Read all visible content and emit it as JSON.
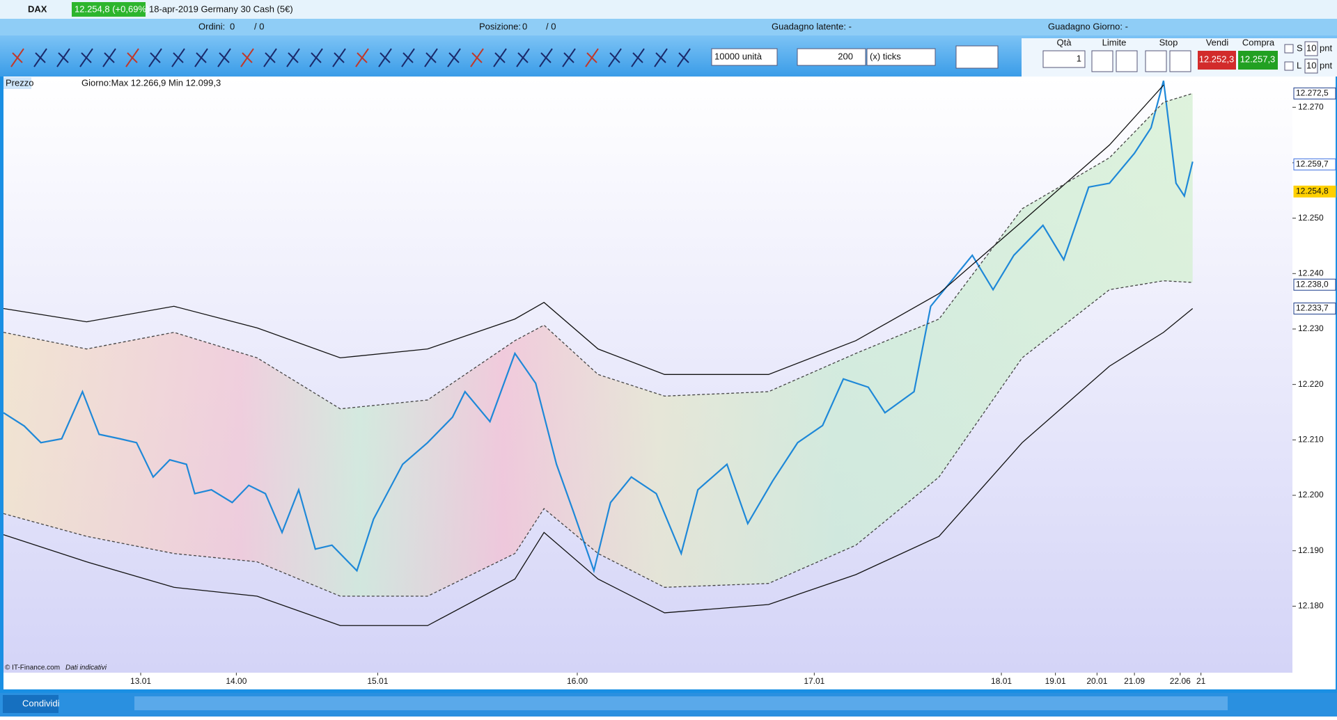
{
  "title_bar": {
    "instrument": "DAX",
    "price": "12.254,8 (+0,69%)",
    "description": "18-apr-2019 Germany 30 Cash (5€)"
  },
  "status_bar": {
    "orders_label": "Ordini:",
    "orders_value": "0",
    "orders_total": "/ 0",
    "position_label": "Posizione:",
    "position_value": "0",
    "position_total": "/ 0",
    "latent_gain": "Guadagno latente: -",
    "daily_gain": "Guadagno Giorno: -"
  },
  "toolbar": {
    "units": "10000 unità",
    "ticks_value": "200",
    "ticks_unit": "(x) ticks",
    "qty_label": "Qtà",
    "qty_value": "1",
    "limit_label": "Limite",
    "stop_label": "Stop",
    "sell_label": "Vendi",
    "sell_price": "12.252,3",
    "buy_label": "Compra",
    "buy_price": "12.257,3",
    "s_label": "S",
    "s_value": "10",
    "l_label": "L",
    "l_value": "10",
    "pnt": "pnt"
  },
  "panel": {
    "label": "Prezzo",
    "info": "Giorno:Max 12.266,9 Min 12.099,3",
    "copyright": "© IT-Finance.com",
    "disclaimer": "Dati indicativi"
  },
  "bottom_bar": {
    "share": "Condividi"
  },
  "chart_data": {
    "type": "line",
    "xlim": [
      0,
      310
    ],
    "ylim": [
      12.168,
      12.2753
    ],
    "xticks": [
      {
        "value": 33,
        "label": "13.01"
      },
      {
        "value": 56,
        "label": "14.00"
      },
      {
        "value": 90,
        "label": "15.01"
      },
      {
        "value": 138,
        "label": "16.00"
      },
      {
        "value": 195,
        "label": "17.01"
      },
      {
        "value": 240,
        "label": "18.01"
      },
      {
        "value": 253,
        "label": "19.01"
      },
      {
        "value": 263,
        "label": "20.01"
      },
      {
        "value": 272,
        "label": "21.09"
      },
      {
        "value": 283,
        "label": "22.06"
      },
      {
        "value": 288,
        "label": "21"
      }
    ],
    "yticks": [
      {
        "value": 12.18,
        "label": "12.180"
      },
      {
        "value": 12.19,
        "label": "12.190"
      },
      {
        "value": 12.2,
        "label": "12.200"
      },
      {
        "value": 12.21,
        "label": "12.210"
      },
      {
        "value": 12.22,
        "label": "12.220"
      },
      {
        "value": 12.23,
        "label": "12.230"
      },
      {
        "value": 12.24,
        "label": "12.240"
      },
      {
        "value": 12.25,
        "label": "12.250"
      },
      {
        "value": 12.26,
        "label": "12.260"
      },
      {
        "value": 12.27,
        "label": "12.270"
      }
    ],
    "series": [
      {
        "color": "#1e88d8",
        "style": "solid",
        "x": [
          0,
          5,
          9,
          14,
          19,
          23,
          28,
          32,
          36,
          40,
          44,
          46,
          50,
          55,
          59,
          63,
          67,
          71,
          75,
          79,
          85,
          89,
          96,
          102,
          108,
          111,
          117,
          123,
          128,
          133,
          137,
          142,
          146,
          151,
          157,
          163,
          167,
          174,
          179,
          185,
          191,
          197,
          202,
          208,
          212,
          219,
          223,
          228,
          233,
          238,
          243,
          250,
          255,
          261,
          266,
          272,
          276,
          279,
          282,
          284,
          286
        ],
        "values": [
          12.2149,
          12.2125,
          12.2095,
          12.2102,
          12.2187,
          12.211,
          12.2102,
          12.2095,
          12.2033,
          12.2064,
          12.2056,
          12.2003,
          12.201,
          12.1987,
          12.2018,
          12.2003,
          12.1933,
          12.201,
          12.1903,
          12.191,
          12.1864,
          12.1957,
          12.2056,
          12.2095,
          12.2141,
          12.2187,
          12.2133,
          12.2256,
          12.2202,
          12.2056,
          12.1972,
          12.1864,
          12.1987,
          12.2033,
          12.2003,
          12.1895,
          12.201,
          12.2056,
          12.1949,
          12.2026,
          12.2095,
          12.2126,
          12.221,
          12.2195,
          12.2149,
          12.2187,
          12.2341,
          12.2387,
          12.2433,
          12.2371,
          12.2433,
          12.2487,
          12.2425,
          12.2556,
          12.2563,
          12.2617,
          12.2663,
          12.2748,
          12.2563,
          12.254,
          12.2602
        ]
      },
      {
        "color": "#111111",
        "style": "solid",
        "x": [
          0,
          20,
          41,
          61,
          81,
          102,
          123,
          130,
          143,
          159,
          184,
          205,
          225,
          245,
          266,
          279,
          286
        ],
        "values": [
          12.2337,
          12.2313,
          12.2341,
          12.2302,
          12.2248,
          12.2264,
          12.2318,
          12.2348,
          12.2264,
          12.2218,
          12.2218,
          12.2279,
          12.2364,
          12.2494,
          12.2632,
          12.274,
          null
        ]
      },
      {
        "color": "#111111",
        "style": "solid",
        "x": [
          0,
          20,
          41,
          61,
          81,
          102,
          123,
          130,
          143,
          159,
          184,
          205,
          225,
          245,
          266,
          279,
          286
        ],
        "values": [
          12.1929,
          12.188,
          12.1834,
          12.1818,
          12.1765,
          12.1765,
          12.1849,
          12.1933,
          12.1849,
          12.1788,
          12.1803,
          12.1857,
          12.1926,
          12.2095,
          12.2233,
          12.2294,
          12.2337
        ]
      },
      {
        "color": "#444444",
        "style": "dashed",
        "x": [
          0,
          20,
          41,
          61,
          81,
          102,
          123,
          130,
          143,
          159,
          184,
          205,
          225,
          245,
          266,
          279,
          286
        ],
        "values": [
          12.2294,
          12.2264,
          12.2294,
          12.2248,
          12.2156,
          12.2172,
          12.2279,
          12.2307,
          12.2218,
          12.2179,
          12.2187,
          12.2256,
          12.2318,
          12.2517,
          12.2609,
          12.2709,
          12.2725
        ]
      },
      {
        "color": "#444444",
        "style": "dashed",
        "x": [
          0,
          20,
          41,
          61,
          81,
          102,
          123,
          130,
          143,
          159,
          184,
          205,
          225,
          245,
          266,
          279,
          286
        ],
        "values": [
          12.1967,
          12.1926,
          12.1895,
          12.188,
          12.1818,
          12.1818,
          12.1895,
          12.1976,
          12.1895,
          12.1834,
          12.1841,
          12.191,
          12.2033,
          12.2248,
          12.2371,
          12.2387,
          12.2384
        ]
      }
    ],
    "price_labels": [
      {
        "value": 12.2725,
        "label": "12.272,5",
        "color": "#1a3a8a"
      },
      {
        "value": 12.2597,
        "label": "12.259,7",
        "color": "#3a6ee0"
      },
      {
        "value": 12.2548,
        "label": "12.254,8",
        "color": "#ffd000"
      },
      {
        "value": 12.238,
        "label": "12.238,0",
        "color": "#1a3a8a"
      },
      {
        "value": 12.2337,
        "label": "12.233,7",
        "color": "#1a3a8a"
      }
    ]
  }
}
